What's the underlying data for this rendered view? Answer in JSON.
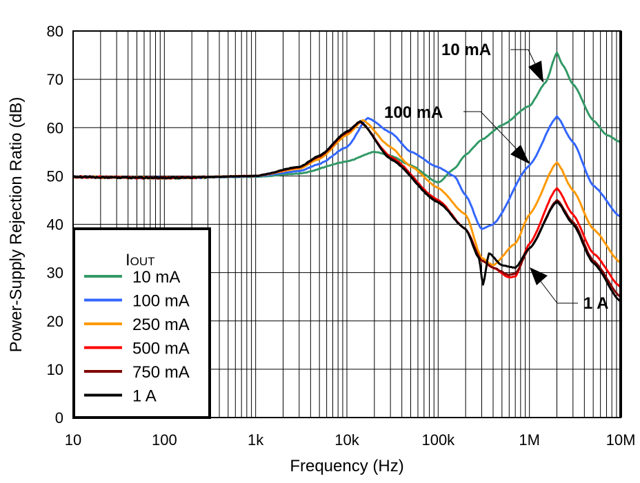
{
  "chart_data": {
    "type": "line",
    "xlabel": "Frequency (Hz)",
    "ylabel": "Power-Supply Rejection Ratio (dB)",
    "x_scale": "log",
    "xlim": [
      10,
      10000000
    ],
    "ylim": [
      0,
      80
    ],
    "grid": true,
    "x_ticks": [
      {
        "v": 10,
        "label": "10"
      },
      {
        "v": 100,
        "label": "100"
      },
      {
        "v": 1000,
        "label": "1k"
      },
      {
        "v": 10000,
        "label": "10k"
      },
      {
        "v": 100000,
        "label": "100k"
      },
      {
        "v": 1000000,
        "label": "1M"
      },
      {
        "v": 10000000,
        "label": "10M"
      }
    ],
    "y_ticks": [
      0,
      10,
      20,
      30,
      40,
      50,
      60,
      70,
      80
    ],
    "legend": {
      "title_main": "I",
      "title_sub": "OUT",
      "placement": "bottom-left"
    },
    "annotations": [
      {
        "text": "10 mA",
        "series": "10 mA"
      },
      {
        "text": "100 mA",
        "series": "100 mA"
      },
      {
        "text": "1 A",
        "series": "1 A"
      }
    ],
    "series": [
      {
        "name": "10 mA",
        "color": "#339966",
        "points": [
          [
            10,
            49.8
          ],
          [
            100,
            49.6
          ],
          [
            1000,
            49.8
          ],
          [
            3000,
            50.5
          ],
          [
            10000,
            53
          ],
          [
            20000,
            55
          ],
          [
            30000,
            54.2
          ],
          [
            50000,
            52.2
          ],
          [
            100000,
            48.6
          ],
          [
            150000,
            51.5
          ],
          [
            200000,
            54.4
          ],
          [
            300000,
            57.5
          ],
          [
            500000,
            60.5
          ],
          [
            1000000,
            64.5
          ],
          [
            1500000,
            69.3
          ],
          [
            2000000,
            75.5
          ],
          [
            2300000,
            73
          ],
          [
            3000000,
            69
          ],
          [
            5000000,
            61.5
          ],
          [
            7000000,
            58.5
          ],
          [
            10000000,
            57
          ]
        ]
      },
      {
        "name": "100 mA",
        "color": "#3366ff",
        "points": [
          [
            10,
            49.8
          ],
          [
            100,
            49.6
          ],
          [
            1000,
            49.9
          ],
          [
            3000,
            51
          ],
          [
            5000,
            52.5
          ],
          [
            10000,
            56
          ],
          [
            17000,
            62
          ],
          [
            30000,
            59
          ],
          [
            50000,
            55
          ],
          [
            100000,
            51.8
          ],
          [
            150000,
            50
          ],
          [
            200000,
            46
          ],
          [
            300000,
            39
          ],
          [
            400000,
            40
          ],
          [
            1000000,
            52.2
          ],
          [
            2000000,
            62.3
          ],
          [
            3000000,
            57
          ],
          [
            5000000,
            48
          ],
          [
            10000000,
            41.5
          ]
        ]
      },
      {
        "name": "250 mA",
        "color": "#ff9900",
        "points": [
          [
            10,
            49.8
          ],
          [
            100,
            49.6
          ],
          [
            1000,
            50
          ],
          [
            3000,
            51.5
          ],
          [
            5000,
            53.5
          ],
          [
            10000,
            58.5
          ],
          [
            15000,
            61.5
          ],
          [
            30000,
            56
          ],
          [
            50000,
            52
          ],
          [
            100000,
            47.5
          ],
          [
            200000,
            42
          ],
          [
            300000,
            33
          ],
          [
            400000,
            31.5
          ],
          [
            700000,
            36
          ],
          [
            1000000,
            42
          ],
          [
            2000000,
            52.8
          ],
          [
            3000000,
            47
          ],
          [
            5000000,
            39
          ],
          [
            10000000,
            32
          ]
        ]
      },
      {
        "name": "500 mA",
        "color": "#ff0000",
        "points": [
          [
            10,
            49.8
          ],
          [
            100,
            49.6
          ],
          [
            1000,
            50
          ],
          [
            3000,
            51.8
          ],
          [
            5000,
            54
          ],
          [
            10000,
            59
          ],
          [
            14000,
            61.2
          ],
          [
            30000,
            54
          ],
          [
            100000,
            45
          ],
          [
            200000,
            39
          ],
          [
            300000,
            32.5
          ],
          [
            400000,
            31
          ],
          [
            600000,
            29
          ],
          [
            700000,
            29.2
          ],
          [
            1000000,
            36
          ],
          [
            2000000,
            47.5
          ],
          [
            3000000,
            42
          ],
          [
            5000000,
            34
          ],
          [
            10000000,
            27
          ]
        ]
      },
      {
        "name": "750 mA",
        "color": "#800000",
        "points": [
          [
            10,
            49.8
          ],
          [
            100,
            49.6
          ],
          [
            1000,
            50
          ],
          [
            3000,
            51.8
          ],
          [
            5000,
            54
          ],
          [
            10000,
            59
          ],
          [
            14000,
            61.2
          ],
          [
            30000,
            53.7
          ],
          [
            100000,
            44.7
          ],
          [
            200000,
            39
          ],
          [
            300000,
            32.5
          ],
          [
            400000,
            31
          ],
          [
            600000,
            29.5
          ],
          [
            700000,
            29.8
          ],
          [
            1000000,
            35
          ],
          [
            2000000,
            45
          ],
          [
            3000000,
            40.5
          ],
          [
            5000000,
            32.5
          ],
          [
            10000000,
            25
          ]
        ]
      },
      {
        "name": "1 A",
        "color": "#000000",
        "points": [
          [
            10,
            49.8
          ],
          [
            100,
            49.6
          ],
          [
            1000,
            50
          ],
          [
            3000,
            51.9
          ],
          [
            5000,
            54.2
          ],
          [
            10000,
            59.2
          ],
          [
            14000,
            61.3
          ],
          [
            30000,
            53.5
          ],
          [
            100000,
            44.5
          ],
          [
            200000,
            39
          ],
          [
            280000,
            33
          ],
          [
            310000,
            27.5
          ],
          [
            360000,
            34
          ],
          [
            500000,
            31.5
          ],
          [
            700000,
            31
          ],
          [
            1000000,
            35
          ],
          [
            2000000,
            44.7
          ],
          [
            3000000,
            40
          ],
          [
            5000000,
            32
          ],
          [
            10000000,
            24
          ]
        ]
      }
    ]
  }
}
